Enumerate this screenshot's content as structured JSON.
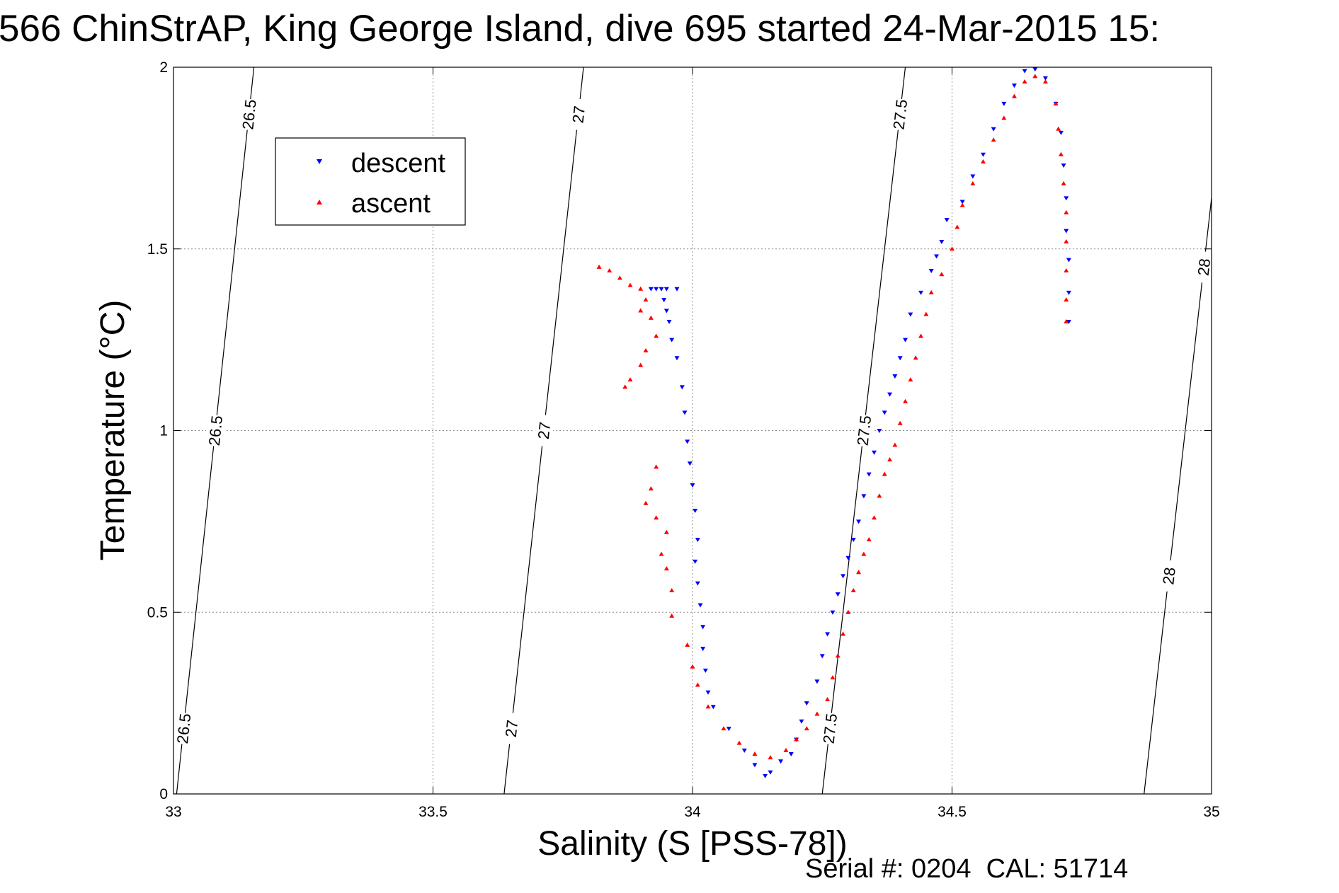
{
  "chart_data": {
    "type": "scatter",
    "title": "566 ChinStrAP, King George Island, dive 695 started 24-Mar-2015 15:",
    "xlabel": "Salinity (S [PSS-78])",
    "ylabel": "Temperature (°C)",
    "xlim": [
      33,
      35
    ],
    "ylim": [
      0,
      2
    ],
    "x_ticks": [
      "33",
      "33.5",
      "34",
      "34.5",
      "35"
    ],
    "y_ticks": [
      "0",
      "0.5",
      "1",
      "1.5",
      "2"
    ],
    "grid": true,
    "legend_position": "top-left",
    "legend": [
      "descent",
      "ascent"
    ],
    "footer": "Serial #: 0204  CAL: 51714",
    "isopycnals": [
      {
        "label": "26.5",
        "points": [
          [
            33.006,
            0.0
          ],
          [
            33.155,
            2.0
          ]
        ]
      },
      {
        "label": "27",
        "points": [
          [
            33.637,
            0.0
          ],
          [
            33.79,
            2.0
          ]
        ]
      },
      {
        "label": "27.5",
        "points": [
          [
            34.25,
            0.0
          ],
          [
            34.41,
            2.0
          ]
        ]
      },
      {
        "label": "28",
        "points": [
          [
            34.87,
            0.0
          ],
          [
            35.0,
            1.64
          ]
        ]
      }
    ],
    "series": [
      {
        "name": "descent",
        "color": "#0000ff",
        "marker": "triangle-down",
        "points": [
          [
            33.92,
            1.39
          ],
          [
            33.93,
            1.39
          ],
          [
            33.94,
            1.39
          ],
          [
            33.95,
            1.39
          ],
          [
            33.97,
            1.39
          ],
          [
            33.945,
            1.36
          ],
          [
            33.95,
            1.33
          ],
          [
            33.955,
            1.3
          ],
          [
            33.96,
            1.25
          ],
          [
            33.97,
            1.2
          ],
          [
            33.98,
            1.12
          ],
          [
            33.985,
            1.05
          ],
          [
            33.99,
            0.97
          ],
          [
            33.995,
            0.91
          ],
          [
            34.0,
            0.85
          ],
          [
            34.005,
            0.78
          ],
          [
            34.01,
            0.7
          ],
          [
            34.005,
            0.64
          ],
          [
            34.01,
            0.58
          ],
          [
            34.015,
            0.52
          ],
          [
            34.02,
            0.46
          ],
          [
            34.02,
            0.4
          ],
          [
            34.025,
            0.34
          ],
          [
            34.03,
            0.28
          ],
          [
            34.04,
            0.24
          ],
          [
            34.07,
            0.18
          ],
          [
            34.1,
            0.12
          ],
          [
            34.12,
            0.08
          ],
          [
            34.14,
            0.05
          ],
          [
            34.15,
            0.06
          ],
          [
            34.17,
            0.09
          ],
          [
            34.19,
            0.11
          ],
          [
            34.2,
            0.15
          ],
          [
            34.21,
            0.2
          ],
          [
            34.22,
            0.25
          ],
          [
            34.24,
            0.31
          ],
          [
            34.25,
            0.38
          ],
          [
            34.26,
            0.44
          ],
          [
            34.27,
            0.5
          ],
          [
            34.28,
            0.55
          ],
          [
            34.29,
            0.6
          ],
          [
            34.3,
            0.65
          ],
          [
            34.31,
            0.7
          ],
          [
            34.32,
            0.75
          ],
          [
            34.33,
            0.82
          ],
          [
            34.34,
            0.88
          ],
          [
            34.35,
            0.94
          ],
          [
            34.36,
            1.0
          ],
          [
            34.37,
            1.05
          ],
          [
            34.38,
            1.1
          ],
          [
            34.39,
            1.15
          ],
          [
            34.4,
            1.2
          ],
          [
            34.41,
            1.25
          ],
          [
            34.42,
            1.32
          ],
          [
            34.44,
            1.38
          ],
          [
            34.46,
            1.44
          ],
          [
            34.47,
            1.48
          ],
          [
            34.48,
            1.52
          ],
          [
            34.49,
            1.58
          ],
          [
            34.52,
            1.63
          ],
          [
            34.54,
            1.7
          ],
          [
            34.56,
            1.76
          ],
          [
            34.58,
            1.83
          ],
          [
            34.6,
            1.9
          ],
          [
            34.62,
            1.95
          ],
          [
            34.64,
            1.99
          ],
          [
            34.66,
            1.995
          ],
          [
            34.68,
            1.97
          ],
          [
            34.7,
            1.9
          ],
          [
            34.71,
            1.82
          ],
          [
            34.715,
            1.73
          ],
          [
            34.72,
            1.64
          ],
          [
            34.72,
            1.55
          ],
          [
            34.725,
            1.47
          ],
          [
            34.725,
            1.38
          ],
          [
            34.725,
            1.3
          ]
        ]
      },
      {
        "name": "ascent",
        "color": "#ff0000",
        "marker": "triangle-up",
        "points": [
          [
            33.82,
            1.45
          ],
          [
            33.84,
            1.44
          ],
          [
            33.86,
            1.42
          ],
          [
            33.88,
            1.4
          ],
          [
            33.9,
            1.39
          ],
          [
            33.91,
            1.36
          ],
          [
            33.9,
            1.33
          ],
          [
            33.92,
            1.31
          ],
          [
            33.93,
            1.26
          ],
          [
            33.91,
            1.22
          ],
          [
            33.9,
            1.18
          ],
          [
            33.88,
            1.14
          ],
          [
            33.87,
            1.12
          ],
          [
            33.93,
            0.9
          ],
          [
            33.92,
            0.84
          ],
          [
            33.91,
            0.8
          ],
          [
            33.93,
            0.76
          ],
          [
            33.95,
            0.72
          ],
          [
            33.94,
            0.66
          ],
          [
            33.95,
            0.62
          ],
          [
            33.96,
            0.56
          ],
          [
            33.96,
            0.49
          ],
          [
            33.99,
            0.41
          ],
          [
            34.0,
            0.35
          ],
          [
            34.01,
            0.3
          ],
          [
            34.03,
            0.24
          ],
          [
            34.06,
            0.18
          ],
          [
            34.09,
            0.14
          ],
          [
            34.12,
            0.11
          ],
          [
            34.15,
            0.1
          ],
          [
            34.18,
            0.12
          ],
          [
            34.2,
            0.15
          ],
          [
            34.22,
            0.18
          ],
          [
            34.24,
            0.22
          ],
          [
            34.26,
            0.26
          ],
          [
            34.27,
            0.32
          ],
          [
            34.28,
            0.38
          ],
          [
            34.29,
            0.44
          ],
          [
            34.3,
            0.5
          ],
          [
            34.31,
            0.56
          ],
          [
            34.32,
            0.61
          ],
          [
            34.33,
            0.66
          ],
          [
            34.34,
            0.7
          ],
          [
            34.35,
            0.76
          ],
          [
            34.36,
            0.82
          ],
          [
            34.37,
            0.88
          ],
          [
            34.38,
            0.92
          ],
          [
            34.39,
            0.96
          ],
          [
            34.4,
            1.02
          ],
          [
            34.41,
            1.08
          ],
          [
            34.42,
            1.14
          ],
          [
            34.43,
            1.2
          ],
          [
            34.44,
            1.26
          ],
          [
            34.45,
            1.32
          ],
          [
            34.46,
            1.38
          ],
          [
            34.48,
            1.43
          ],
          [
            34.5,
            1.5
          ],
          [
            34.51,
            1.56
          ],
          [
            34.52,
            1.62
          ],
          [
            34.54,
            1.68
          ],
          [
            34.56,
            1.74
          ],
          [
            34.58,
            1.8
          ],
          [
            34.6,
            1.86
          ],
          [
            34.62,
            1.92
          ],
          [
            34.64,
            1.96
          ],
          [
            34.66,
            1.975
          ],
          [
            34.68,
            1.96
          ],
          [
            34.7,
            1.9
          ],
          [
            34.705,
            1.83
          ],
          [
            34.71,
            1.76
          ],
          [
            34.715,
            1.68
          ],
          [
            34.72,
            1.6
          ],
          [
            34.72,
            1.52
          ],
          [
            34.72,
            1.44
          ],
          [
            34.72,
            1.36
          ],
          [
            34.72,
            1.3
          ]
        ]
      }
    ]
  },
  "colors": {
    "descent": "#0000ff",
    "ascent": "#ff0000",
    "axes": "#000000",
    "grid": "#8c8c8c"
  }
}
